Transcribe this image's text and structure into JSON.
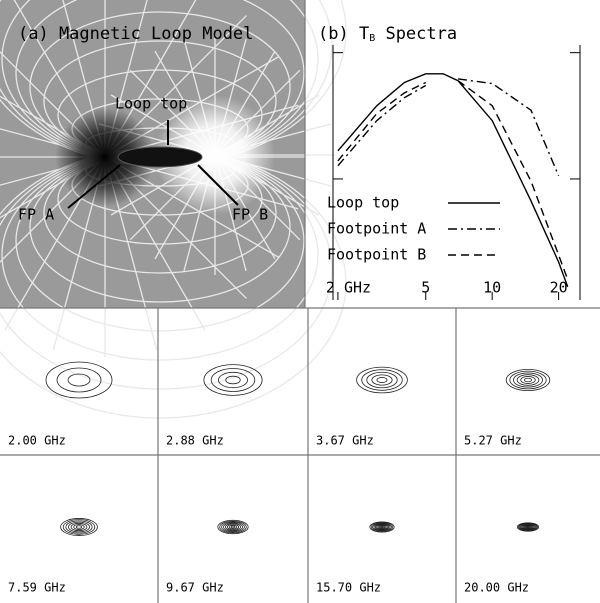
{
  "panel_a": {
    "title": "(a) Magnetic Loop Model",
    "labels": [
      "Loop top",
      "FP A",
      "FP B"
    ]
  },
  "chart_data": {
    "type": "line",
    "title": "(b) T",
    "title_sub": "B",
    "title_rest": " Spectra",
    "log_x": true,
    "log_y": true,
    "x": [
      2,
      3,
      4,
      5,
      6,
      7,
      10,
      15,
      20,
      22
    ],
    "xlim": [
      1.9,
      25
    ],
    "xticks": [
      {
        "value": 2,
        "label": "2 GHz"
      },
      5,
      10,
      20
    ],
    "ylim": [
      0.11,
      11.5
    ],
    "yticks": [
      1,
      10
    ],
    "series": [
      {
        "name": "Loop top",
        "color": "#000000",
        "dash": "solid",
        "values": [
          1.67,
          3.8,
          5.8,
          6.8,
          6.8,
          6.0,
          2.9,
          0.67,
          0.22,
          0.14
        ]
      },
      {
        "name": "Footpoint A",
        "color": "#000000",
        "dash": "dashdot",
        "values": [
          1.27,
          2.9,
          4.4,
          5.5,
          null,
          6.2,
          5.7,
          3.5,
          1.06,
          null
        ]
      },
      {
        "name": "Footpoint B",
        "color": "#000000",
        "dash": "dashed",
        "values": [
          1.39,
          3.3,
          4.8,
          5.8,
          null,
          6.0,
          3.8,
          0.96,
          0.25,
          0.16
        ]
      }
    ]
  },
  "contour_panels": [
    "2.00 GHz",
    "2.88 GHz",
    "3.67 GHz",
    "5.27 GHz",
    "7.59 GHz",
    "9.67 GHz",
    "15.70 GHz",
    "20.00 GHz"
  ]
}
